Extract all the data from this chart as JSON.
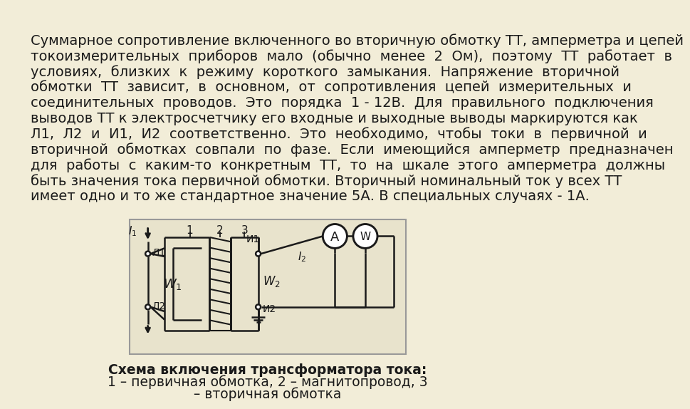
{
  "background_color": "#f2edd8",
  "diagram_bg": "#e8e2cc",
  "text_color": "#1a1a1a",
  "line1": "Суммарное сопротивление включенного во вторичную обмотку ТТ, амперметра и цепей",
  "line2": "токоизмерительных  приборов  мало  (обычно  менее  2  Ом),  поэтому  ТТ  работает  в",
  "line3": "условиях,  близких  к  режиму  короткого  замыкания.  Напряжение  вторичной",
  "line4": "обмотки  ТТ  зависит,  в  основном,  от  сопротивления  цепей  измерительных  и",
  "line5": "соединительных  проводов.  Это  порядка  1 - 12В.  Для  правильного  подключения",
  "line6": "выводов ТТ к электросчетчику его входные и выходные выводы маркируются как",
  "line7": "Л1,  Л2  и  И1,  И2  соответственно.  Это  необходимо,  чтобы  токи  в  первичной  и",
  "line8": "вторичной  обмотках  совпали  по  фазе.  Если  имеющийся  амперметр  предназначен",
  "line9": "для  работы  с  каким-то  конкретным  ТТ,  то  на  шкале  этого  амперметра  должны",
  "line10": "быть значения тока первичной обмотки. Вторичный номинальный ток у всех ТТ",
  "line11": "имеет одно и то же стандартное значение 5А. В специальных случаях - 1А.",
  "caption_line1": "Схема включения трансформатора тока:",
  "caption_line2": "1 – первичная обмотка, 2 – магнитопровод, 3",
  "caption_line3": "– вторичная обмотка",
  "text_fontsize": 14.0,
  "caption_fontsize": 13.5
}
